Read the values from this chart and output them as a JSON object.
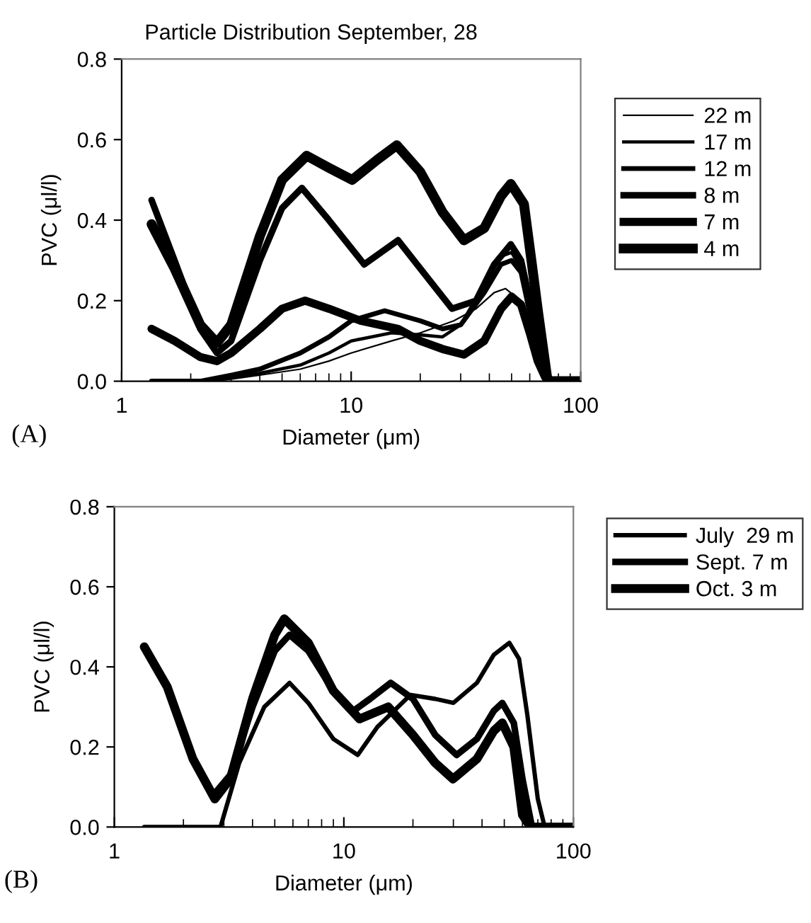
{
  "chart_data": [
    {
      "type": "line",
      "title": "Particle Distribution September, 28",
      "xlabel": "Diameter (μm)",
      "ylabel": "PVC (μl/l)",
      "log": "x",
      "xlim": [
        1,
        100
      ],
      "xticks": [
        1,
        10,
        100
      ],
      "ylim": [
        0,
        0.8
      ],
      "yticks": [
        {
          "value": 0,
          "label": "0.0"
        },
        {
          "value": 0.2,
          "label": "0.2"
        },
        {
          "value": 0.4,
          "label": "0.4"
        },
        {
          "value": 0.6,
          "label": "0.6"
        },
        {
          "value": 0.8,
          "label": "0.8"
        }
      ],
      "grid": false,
      "legend": "right",
      "annotations": [
        "(A)"
      ],
      "series": [
        {
          "name": "22 m",
          "color": "#000000",
          "x": [
            1.35,
            2,
            2.5,
            3,
            4,
            6,
            8,
            10,
            15,
            20,
            28,
            35,
            42,
            47,
            52,
            57,
            62,
            66,
            70,
            75,
            100
          ],
          "values": [
            0,
            0,
            0,
            0.005,
            0.015,
            0.03,
            0.05,
            0.07,
            0.1,
            0.12,
            0.15,
            0.18,
            0.22,
            0.23,
            0.21,
            0.15,
            0.08,
            0.03,
            0.01,
            0,
            0
          ]
        },
        {
          "name": "17 m",
          "color": "#000000",
          "x": [
            1.35,
            2,
            2.3,
            3,
            4,
            6,
            8,
            10,
            15,
            20,
            25,
            30,
            38,
            45,
            50,
            55,
            60,
            65,
            70,
            75,
            100
          ],
          "values": [
            0,
            0,
            0,
            0.01,
            0.02,
            0.04,
            0.07,
            0.1,
            0.12,
            0.115,
            0.11,
            0.14,
            0.24,
            0.31,
            0.32,
            0.28,
            0.18,
            0.08,
            0.02,
            0,
            0
          ]
        },
        {
          "name": "12 m",
          "color": "#000000",
          "x": [
            1.35,
            2,
            2.2,
            3,
            4,
            6,
            8,
            10,
            14,
            20,
            25,
            30,
            38,
            45,
            50,
            55,
            60,
            65,
            70,
            75,
            100
          ],
          "values": [
            0,
            0,
            0,
            0.015,
            0.03,
            0.07,
            0.11,
            0.15,
            0.175,
            0.15,
            0.13,
            0.14,
            0.22,
            0.29,
            0.3,
            0.27,
            0.17,
            0.07,
            0.02,
            0,
            0
          ]
        },
        {
          "name": "8 m",
          "color": "#000000",
          "x": [
            1.35,
            1.7,
            2.2,
            2.6,
            3,
            4,
            5,
            6.1,
            8,
            11.4,
            16,
            22,
            27.5,
            35,
            42,
            49.6,
            55,
            60,
            65,
            70,
            75,
            100
          ],
          "values": [
            0.45,
            0.3,
            0.13,
            0.07,
            0.1,
            0.3,
            0.43,
            0.48,
            0.4,
            0.29,
            0.35,
            0.25,
            0.18,
            0.2,
            0.29,
            0.34,
            0.3,
            0.2,
            0.08,
            0.02,
            0,
            0
          ]
        },
        {
          "name": "7 m",
          "color": "#000000",
          "x": [
            1.35,
            1.7,
            2.2,
            2.6,
            3,
            4,
            5,
            6.3,
            8,
            11,
            16,
            20,
            25,
            31,
            38,
            45,
            50,
            55,
            60,
            65,
            70,
            75,
            100
          ],
          "values": [
            0.13,
            0.1,
            0.06,
            0.05,
            0.07,
            0.13,
            0.18,
            0.2,
            0.18,
            0.15,
            0.13,
            0.1,
            0.08,
            0.066,
            0.1,
            0.18,
            0.21,
            0.19,
            0.12,
            0.05,
            0.01,
            0,
            0
          ]
        },
        {
          "name": "4 m",
          "color": "#000000",
          "x": [
            1.35,
            1.7,
            2.2,
            2.6,
            3,
            4,
            5,
            6.4,
            8,
            10.1,
            13,
            15.8,
            20,
            25,
            31,
            38,
            45,
            49.6,
            56.6,
            61,
            65.3,
            71.8,
            100
          ],
          "values": [
            0.39,
            0.28,
            0.14,
            0.095,
            0.14,
            0.36,
            0.5,
            0.56,
            0.53,
            0.5,
            0.55,
            0.586,
            0.52,
            0.42,
            0.35,
            0.38,
            0.46,
            0.49,
            0.44,
            0.3,
            0.17,
            0,
            0
          ]
        }
      ]
    },
    {
      "type": "line",
      "xlabel": "Diameter (μm)",
      "ylabel": "PVC (μl/l)",
      "log": "x",
      "xlim": [
        1,
        100
      ],
      "xticks": [
        1,
        10,
        100
      ],
      "ylim": [
        0,
        0.8
      ],
      "yticks": [
        {
          "value": 0,
          "label": "0.0"
        },
        {
          "value": 0.2,
          "label": "0.2"
        },
        {
          "value": 0.4,
          "label": "0.4"
        },
        {
          "value": 0.6,
          "label": "0.6"
        },
        {
          "value": 0.8,
          "label": "0.8"
        }
      ],
      "grid": false,
      "legend": "right",
      "annotations": [
        "(B)"
      ],
      "series": [
        {
          "name": "July  29 m",
          "color": "#000000",
          "x": [
            1.35,
            2,
            2.9,
            3.5,
            4.5,
            5.8,
            7,
            9,
            11.5,
            14,
            19.5,
            25,
            30,
            38,
            45,
            52.6,
            58,
            63,
            70,
            75,
            100
          ],
          "values": [
            0,
            0,
            0,
            0.16,
            0.3,
            0.36,
            0.31,
            0.22,
            0.18,
            0.25,
            0.33,
            0.32,
            0.31,
            0.36,
            0.43,
            0.46,
            0.42,
            0.28,
            0.07,
            0,
            0
          ]
        },
        {
          "name": "Sept. 7 m",
          "color": "#000000",
          "x": [
            1.35,
            1.7,
            2.2,
            2.7,
            3.2,
            4,
            5,
            5.8,
            7,
            9,
            11,
            13,
            16,
            20,
            25,
            31,
            38,
            45,
            49,
            55,
            60,
            66,
            100
          ],
          "values": [
            0.45,
            0.35,
            0.17,
            0.08,
            0.13,
            0.3,
            0.44,
            0.48,
            0.44,
            0.34,
            0.29,
            0.32,
            0.36,
            0.32,
            0.23,
            0.18,
            0.22,
            0.29,
            0.31,
            0.26,
            0.12,
            0,
            0
          ]
        },
        {
          "name": "Oct. 3 m",
          "color": "#000000",
          "x": [
            1.35,
            1.7,
            2.2,
            2.74,
            3.2,
            4,
            5,
            5.5,
            7,
            9,
            11.7,
            15.6,
            20,
            25,
            29.9,
            38,
            45,
            49,
            55,
            60,
            65,
            100
          ],
          "values": [
            0.45,
            0.35,
            0.17,
            0.07,
            0.12,
            0.32,
            0.48,
            0.52,
            0.46,
            0.34,
            0.27,
            0.3,
            0.23,
            0.16,
            0.12,
            0.17,
            0.24,
            0.26,
            0.2,
            0.03,
            0,
            0
          ]
        }
      ]
    }
  ]
}
